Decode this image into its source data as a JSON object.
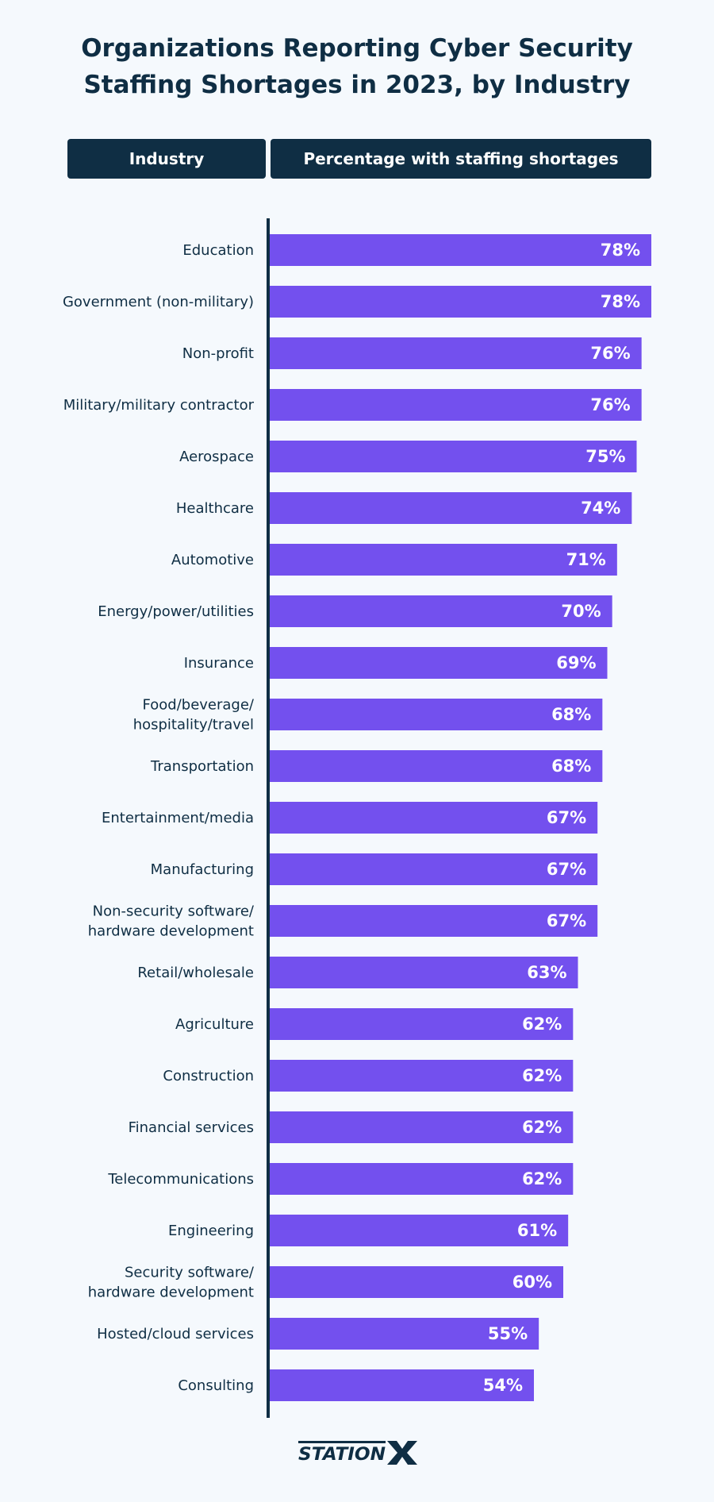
{
  "title": "Organizations Reporting Cyber Security Staffing Shortages in 2023, by Industry",
  "table_header": {
    "industry": "Industry",
    "percentage": "Percentage with staffing shortages"
  },
  "colors": {
    "bar": "#7350ee",
    "navy": "#0f2e44",
    "background": "#f5f9fd"
  },
  "logo_text": "STATIONX",
  "chart_data": {
    "type": "bar",
    "orientation": "horizontal",
    "unit": "%",
    "categories": [
      [
        "Education"
      ],
      [
        "Government (non-military)"
      ],
      [
        "Non-profit"
      ],
      [
        "Military/military contractor"
      ],
      [
        "Aerospace"
      ],
      [
        "Healthcare"
      ],
      [
        "Automotive"
      ],
      [
        "Energy/power/utilities"
      ],
      [
        "Insurance"
      ],
      [
        "Food/beverage/",
        "hospitality/travel"
      ],
      [
        "Transportation"
      ],
      [
        "Entertainment/media"
      ],
      [
        "Manufacturing"
      ],
      [
        "Non-security software/",
        "hardware development"
      ],
      [
        "Retail/wholesale"
      ],
      [
        "Agriculture"
      ],
      [
        "Construction"
      ],
      [
        "Financial services"
      ],
      [
        "Telecommunications"
      ],
      [
        "Engineering"
      ],
      [
        "Security software/",
        "hardware development"
      ],
      [
        "Hosted/cloud services"
      ],
      [
        "Consulting"
      ]
    ],
    "values": [
      78,
      78,
      76,
      76,
      75,
      74,
      71,
      70,
      69,
      68,
      68,
      67,
      67,
      67,
      63,
      62,
      62,
      62,
      62,
      61,
      60,
      55,
      54
    ],
    "data_labels": [
      "78%",
      "78%",
      "76%",
      "76%",
      "75%",
      "74%",
      "71%",
      "70%",
      "69%",
      "68%",
      "68%",
      "67%",
      "67%",
      "67%",
      "63%",
      "62%",
      "62%",
      "62%",
      "62%",
      "61%",
      "60%",
      "55%",
      "54%"
    ],
    "xlim": [
      0,
      78
    ]
  }
}
